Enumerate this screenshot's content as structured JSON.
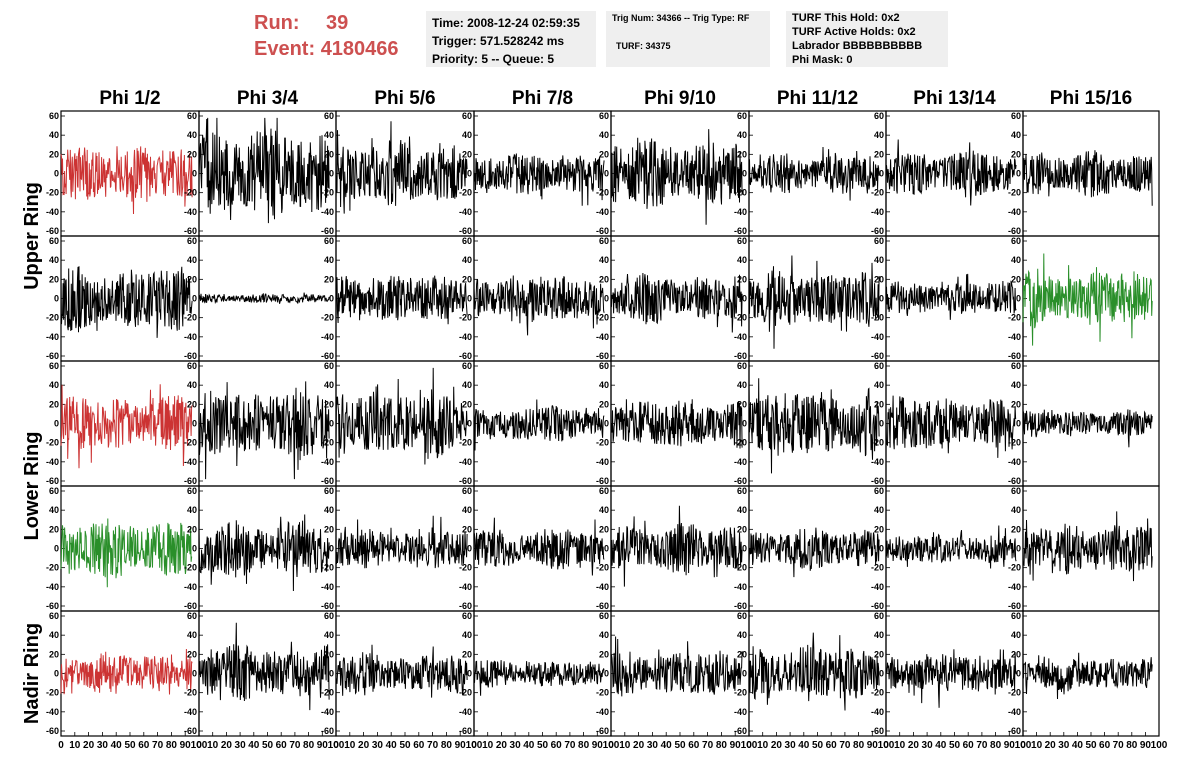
{
  "header": {
    "run_label": "Run:",
    "run_value": "39",
    "event_label": "Event:",
    "event_value": "4180466"
  },
  "info": {
    "time": "Time: 2008-12-24 02:59:35",
    "trigger": "Trigger: 571.528242 ms",
    "priority": "Priority: 5 -- Queue: 5",
    "trig_num": "Trig Num: 34366 -- Trig Type: RF",
    "turf": "TURF: 34375",
    "turf_hold": "TURF This Hold: 0x2",
    "turf_active": "TURF Active Holds: 0x2",
    "labrador": "Labrador BBBBBBBBBB",
    "phi_mask": "Phi Mask: 0"
  },
  "colors": {
    "normal": "#000000",
    "red": "#cc3333",
    "green": "#2a8f2a"
  },
  "chart_data": {
    "type": "line",
    "columns": [
      "Phi 1/2",
      "Phi 3/4",
      "Phi 5/6",
      "Phi 7/8",
      "Phi 9/10",
      "Phi 11/12",
      "Phi 13/14",
      "Phi 15/16"
    ],
    "row_groups": [
      {
        "label": "Upper Ring",
        "rows": [
          0,
          1
        ]
      },
      {
        "label": "Lower Ring",
        "rows": [
          2,
          3
        ]
      },
      {
        "label": "Nadir Ring",
        "rows": [
          4
        ]
      }
    ],
    "xlim": [
      0,
      100
    ],
    "ylim": [
      -60,
      60
    ],
    "xticks": [
      "0",
      "10",
      "20",
      "30",
      "40",
      "50",
      "60",
      "70",
      "80",
      "90",
      "100"
    ],
    "yticks": [
      "60",
      "40",
      "20",
      "0",
      "-20",
      "-40",
      "-60"
    ],
    "samples": 256,
    "x_end": 95,
    "panels": [
      [
        {
          "color": "red",
          "amp": 25
        },
        {
          "color": "normal",
          "amp": 40
        },
        {
          "color": "normal",
          "amp": 28
        },
        {
          "color": "normal",
          "amp": 18
        },
        {
          "color": "normal",
          "amp": 30
        },
        {
          "color": "normal",
          "amp": 18
        },
        {
          "color": "normal",
          "amp": 20
        },
        {
          "color": "normal",
          "amp": 20
        }
      ],
      [
        {
          "color": "normal",
          "amp": 28
        },
        {
          "color": "normal",
          "amp": 4
        },
        {
          "color": "normal",
          "amp": 22
        },
        {
          "color": "normal",
          "amp": 22
        },
        {
          "color": "normal",
          "amp": 22
        },
        {
          "color": "normal",
          "amp": 25
        },
        {
          "color": "normal",
          "amp": 15
        },
        {
          "color": "green",
          "amp": 25
        }
      ],
      [
        {
          "color": "red",
          "amp": 24
        },
        {
          "color": "normal",
          "amp": 30
        },
        {
          "color": "normal",
          "amp": 30
        },
        {
          "color": "normal",
          "amp": 16
        },
        {
          "color": "normal",
          "amp": 22
        },
        {
          "color": "normal",
          "amp": 30
        },
        {
          "color": "normal",
          "amp": 24
        },
        {
          "color": "normal",
          "amp": 12
        }
      ],
      [
        {
          "color": "green",
          "amp": 26
        },
        {
          "color": "normal",
          "amp": 25
        },
        {
          "color": "normal",
          "amp": 18
        },
        {
          "color": "normal",
          "amp": 18
        },
        {
          "color": "normal",
          "amp": 22
        },
        {
          "color": "normal",
          "amp": 18
        },
        {
          "color": "normal",
          "amp": 14
        },
        {
          "color": "normal",
          "amp": 22
        }
      ],
      [
        {
          "color": "red",
          "amp": 18
        },
        {
          "color": "normal",
          "amp": 25
        },
        {
          "color": "normal",
          "amp": 18
        },
        {
          "color": "normal",
          "amp": 12
        },
        {
          "color": "normal",
          "amp": 20
        },
        {
          "color": "normal",
          "amp": 25
        },
        {
          "color": "normal",
          "amp": 18
        },
        {
          "color": "normal",
          "amp": 15
        }
      ]
    ]
  }
}
